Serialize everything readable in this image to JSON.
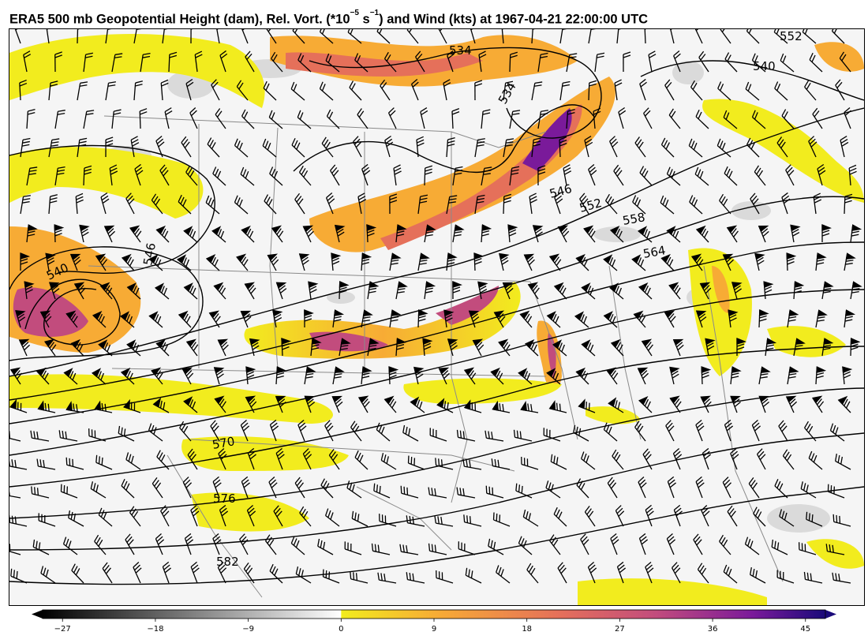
{
  "title": {
    "part1": "ERA5 500 mb Geopotential Height (dam), Rel. Vort. (*10",
    "exp1": "−5",
    "part2": " s",
    "exp2": "−1",
    "part3": ") and Wind (kts) at 1967-04-21 22:00:00 UTC"
  },
  "colors": {
    "negative_ramp": [
      "#000000",
      "#ffffff"
    ],
    "positive_ramp": [
      "#f2ec1e",
      "#f7ab35",
      "#e5705a",
      "#c24c7d",
      "#7a1a9a",
      "#1a0a7a"
    ],
    "height_contour": "#000000",
    "borders": "#8a8a8a"
  },
  "colorbar": {
    "min": -30,
    "max": 48,
    "ticks": [
      "−27",
      "−18",
      "−9",
      "0",
      "9",
      "18",
      "27",
      "36",
      "45"
    ],
    "tick_values": [
      -27,
      -18,
      -9,
      0,
      9,
      18,
      27,
      36,
      45
    ]
  },
  "contour_labels": [
    "534",
    "534",
    "540",
    "540",
    "546",
    "546",
    "552",
    "558",
    "564",
    "570",
    "576",
    "582",
    "552"
  ]
}
